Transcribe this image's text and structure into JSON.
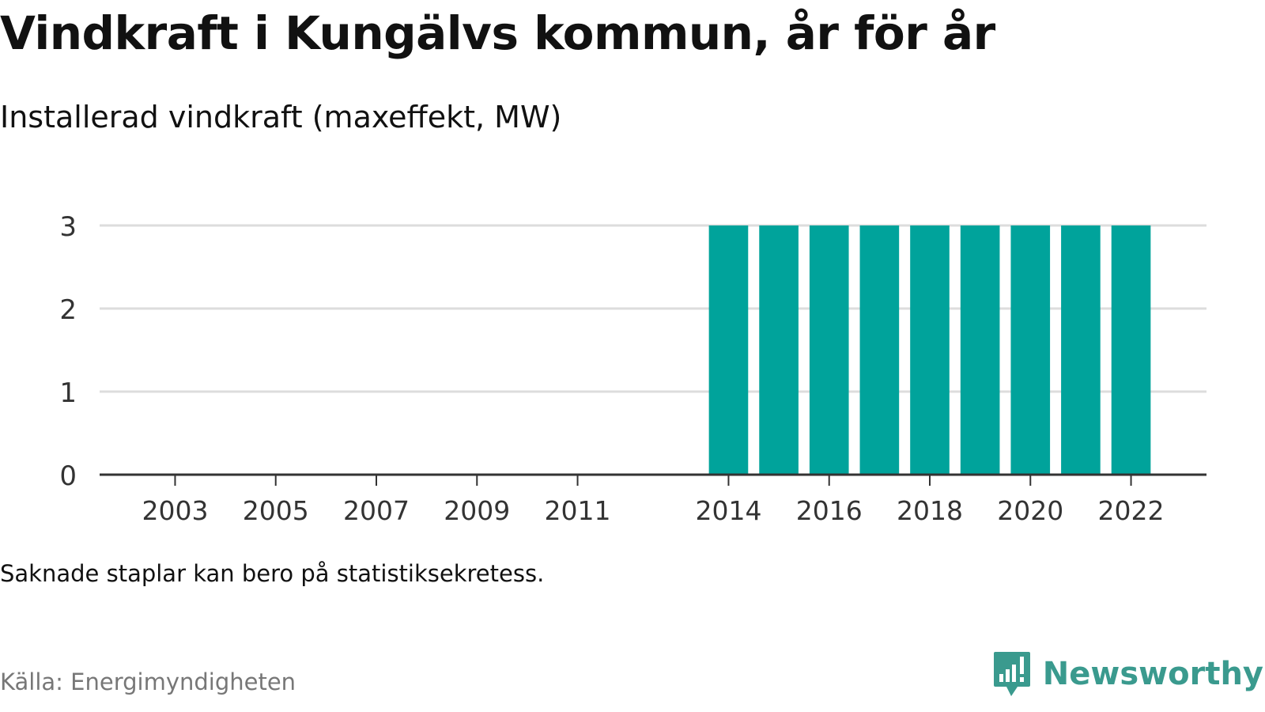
{
  "title": "Vindkraft i Kungälvs kommun, år för år",
  "subtitle": "Installerad vindkraft (maxeffekt, MW)",
  "note": "Saknade staplar kan bero på statistiksekretess.",
  "source": "Källa: Energimyndigheten",
  "brand": {
    "name": "Newsworthy",
    "icon": "newsworthy-logo-icon",
    "color": "#3a9a8e"
  },
  "colors": {
    "bar": "#00a39b",
    "grid": "#dddddd",
    "axis": "#333333",
    "tick_text": "#333333"
  },
  "chart_data": {
    "type": "bar",
    "title": "Vindkraft i Kungälvs kommun, år för år",
    "subtitle": "Installerad vindkraft (maxeffekt, MW)",
    "xlabel": "",
    "ylabel": "",
    "categories": [
      "2002",
      "2003",
      "2004",
      "2005",
      "2006",
      "2007",
      "2008",
      "2009",
      "2010",
      "2011",
      "2012",
      "2013",
      "2014",
      "2015",
      "2016",
      "2017",
      "2018",
      "2019",
      "2020",
      "2021",
      "2022",
      "2023"
    ],
    "values": [
      null,
      null,
      null,
      null,
      null,
      null,
      null,
      null,
      null,
      null,
      null,
      null,
      3,
      3,
      3,
      3,
      3,
      3,
      3,
      3,
      3,
      null
    ],
    "x_tick_labels": [
      "2003",
      "2005",
      "2007",
      "2009",
      "2011",
      "2014",
      "2016",
      "2018",
      "2020",
      "2022"
    ],
    "yticks": [
      0,
      1,
      2,
      3
    ],
    "ylim": [
      0,
      3
    ],
    "grid": true,
    "legend": "none"
  }
}
